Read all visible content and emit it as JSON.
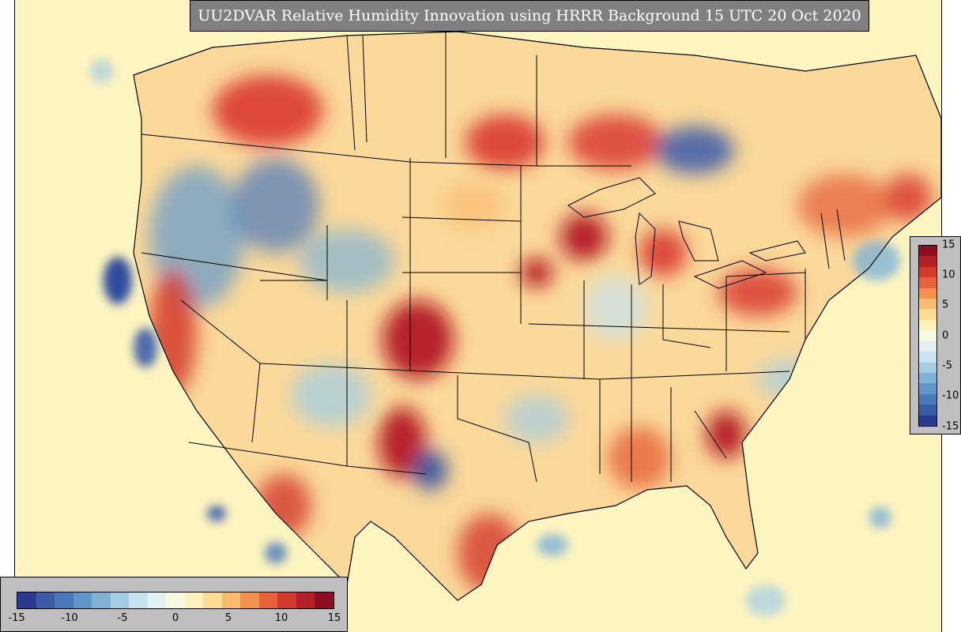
{
  "title": "UU2DVAR Relative Humidity Innovation using HRRR Background 15 UTC 20 Oct 2020",
  "colorbar": {
    "min": -15,
    "max": 15,
    "right_ticks": [
      "15",
      "10",
      "5",
      "0",
      "-5",
      "-10",
      "-15"
    ],
    "bottom_ticks": [
      "-15",
      "-10",
      "-5",
      "0",
      "5",
      "10",
      "15"
    ],
    "colors": [
      "#2b3990",
      "#3a5ba8",
      "#4a78bb",
      "#6096c8",
      "#7fb2d6",
      "#a3cde3",
      "#c6e3ef",
      "#e3f1f2",
      "#f7f9e0",
      "#fdf2bb",
      "#fddc94",
      "#f9bb6f",
      "#f3924f",
      "#e6623a",
      "#d33a2c",
      "#b51f26",
      "#8f0d21"
    ]
  },
  "map": {
    "ocean_color": "#fdf5c0",
    "palette": {
      "deep_red": "#b0101f",
      "red": "#d7302a",
      "orange": "#ef8a4a",
      "light_orange": "#f9c58a",
      "pale_yellow": "#fbe8a6",
      "light_blue": "#b3d4e8",
      "blue": "#6a9cca",
      "deep_blue": "#2f4b9e"
    }
  }
}
